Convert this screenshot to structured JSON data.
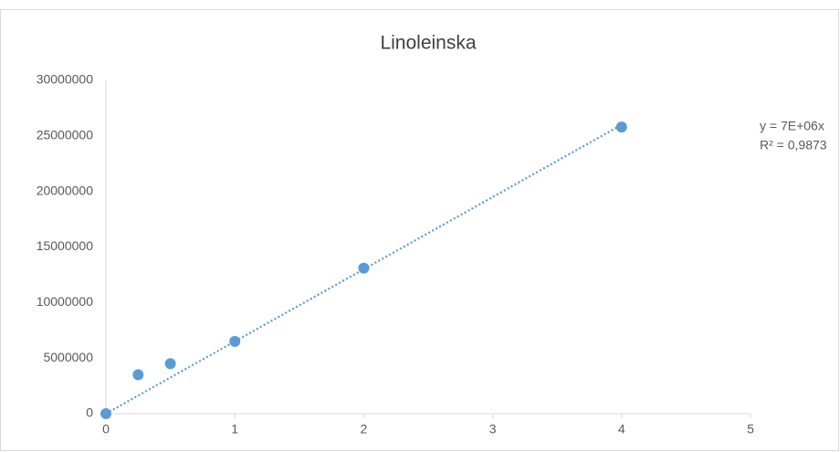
{
  "chart_data": {
    "type": "scatter",
    "title": "Linoleinska",
    "series": [
      {
        "color": "#5b9bd5",
        "x": [
          0,
          0.25,
          0.5,
          1,
          2,
          4
        ],
        "values": [
          0,
          3500000,
          4500000,
          6500000,
          13100000,
          25800000
        ]
      }
    ],
    "trendline": {
      "color": "#5b9bd5",
      "x": [
        0,
        4
      ],
      "values": [
        0,
        26000000
      ],
      "equation": "y = 7E+06x",
      "r_squared": "R² = 0,9873"
    },
    "xlim": [
      0,
      5
    ],
    "xticks": [
      0,
      1,
      2,
      3,
      4,
      5
    ],
    "ylim": [
      0,
      30000000
    ],
    "yticks": [
      0,
      5000000,
      10000000,
      15000000,
      20000000,
      25000000,
      30000000
    ],
    "grid": false
  }
}
